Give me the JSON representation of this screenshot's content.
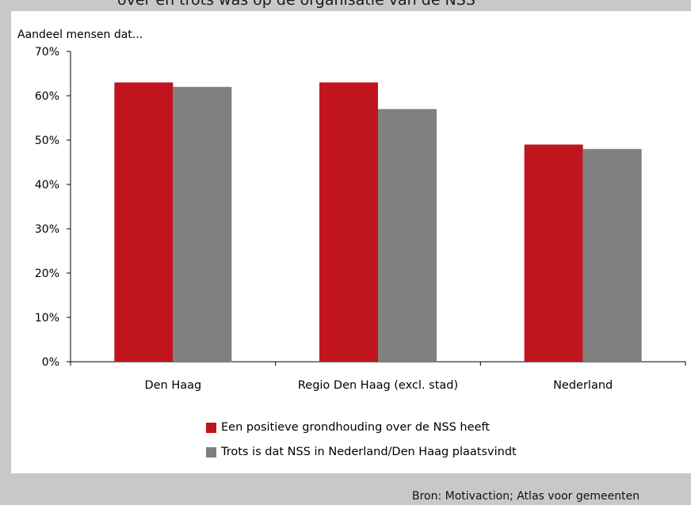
{
  "header": {
    "title": "over en trots was op de organisatie van de NSS",
    "y_caption": "Aandeel mensen dat..."
  },
  "chart_data": {
    "type": "bar",
    "categories": [
      "Den Haag",
      "Regio Den Haag (excl. stad)",
      "Nederland"
    ],
    "series": [
      {
        "name": "Een positieve grondhouding over de NSS heeft",
        "values": [
          63,
          63,
          49
        ],
        "color": "#c0151f"
      },
      {
        "name": "Trots is dat NSS in Nederland/Den Haag plaatsvindt",
        "values": [
          62,
          57,
          48
        ],
        "color": "#808080"
      }
    ],
    "ylim": [
      0,
      70
    ],
    "yticks": [
      "0%",
      "10%",
      "20%",
      "30%",
      "40%",
      "50%",
      "60%",
      "70%"
    ],
    "grid": false,
    "legend_position": "bottom"
  },
  "footer": {
    "source": "Bron: Motivaction; Atlas voor gemeenten"
  }
}
